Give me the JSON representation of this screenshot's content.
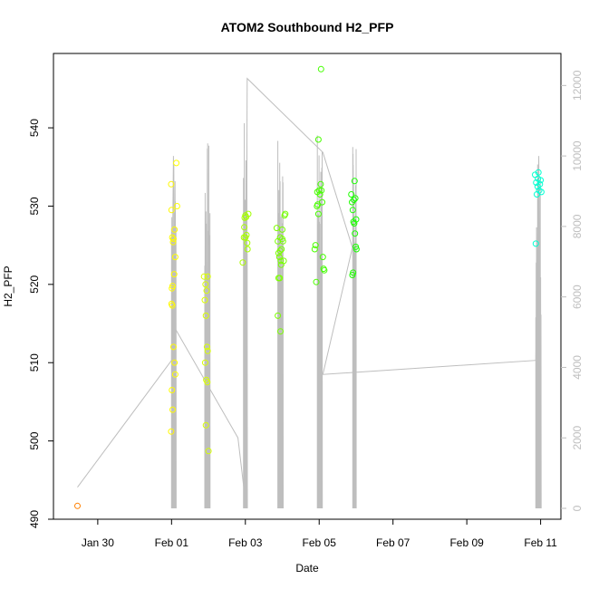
{
  "chart_data": {
    "type": "scatter",
    "title": "ATOM2 Southbound H2_PFP",
    "xlabel": "Date",
    "ylabel": "H2_PFP",
    "x_ticks": [
      {
        "day": 0.5,
        "label": "Jan 30"
      },
      {
        "day": 2.5,
        "label": "Feb 01"
      },
      {
        "day": 4.5,
        "label": "Feb 03"
      },
      {
        "day": 6.5,
        "label": "Feb 05"
      },
      {
        "day": 8.5,
        "label": "Feb 07"
      },
      {
        "day": 10.5,
        "label": "Feb 09"
      },
      {
        "day": 12.5,
        "label": "Feb 11"
      }
    ],
    "x_range_days": [
      -0.7,
      13.05
    ],
    "y_left": {
      "range": [
        490,
        549.5
      ],
      "ticks": [
        490,
        500,
        510,
        520,
        530,
        540
      ]
    },
    "y_right": {
      "range": [
        0,
        12600
      ],
      "ticks": [
        0,
        2000,
        4000,
        6000,
        8000,
        10000,
        12000
      ],
      "color": "#bebebe"
    },
    "color_scale": {
      "day_min": -0.05,
      "day_max": 12.5
    },
    "series": [
      {
        "role": "H2_PFP",
        "points": [
          [
            -0.05,
            491.7
          ],
          [
            2.49,
            532.8
          ],
          [
            2.5,
            529.5
          ],
          [
            2.52,
            526.0
          ],
          [
            2.54,
            525.4
          ],
          [
            2.55,
            525.8
          ],
          [
            2.57,
            521.3
          ],
          [
            2.53,
            519.8
          ],
          [
            2.51,
            519.5
          ],
          [
            2.5,
            517.5
          ],
          [
            2.52,
            517.3
          ],
          [
            2.55,
            512.0
          ],
          [
            2.58,
            510.0
          ],
          [
            2.6,
            508.5
          ],
          [
            2.51,
            506.5
          ],
          [
            2.53,
            504.0
          ],
          [
            2.49,
            501.2
          ],
          [
            2.63,
            535.5
          ],
          [
            2.65,
            530.0
          ],
          [
            2.58,
            527.0
          ],
          [
            2.6,
            523.5
          ],
          [
            3.38,
            521.0
          ],
          [
            3.42,
            520.0
          ],
          [
            3.45,
            519.2
          ],
          [
            3.4,
            518.0
          ],
          [
            3.43,
            516.0
          ],
          [
            3.46,
            512.0
          ],
          [
            3.48,
            511.5
          ],
          [
            3.41,
            510.0
          ],
          [
            3.44,
            507.8
          ],
          [
            3.47,
            507.5
          ],
          [
            3.43,
            502.0
          ],
          [
            3.5,
            498.7
          ],
          [
            3.48,
            521.0
          ],
          [
            4.43,
            522.8
          ],
          [
            4.46,
            526.0
          ],
          [
            4.48,
            528.5
          ],
          [
            4.5,
            528.8
          ],
          [
            4.52,
            528.6
          ],
          [
            4.47,
            527.3
          ],
          [
            4.53,
            526.3
          ],
          [
            4.55,
            525.3
          ],
          [
            4.56,
            524.5
          ],
          [
            4.5,
            526.0
          ],
          [
            4.58,
            529.0
          ],
          [
            5.35,
            527.2
          ],
          [
            5.38,
            525.5
          ],
          [
            5.4,
            524.0
          ],
          [
            5.42,
            523.5
          ],
          [
            5.44,
            526.0
          ],
          [
            5.46,
            523.0
          ],
          [
            5.48,
            524.5
          ],
          [
            5.5,
            527.0
          ],
          [
            5.52,
            525.5
          ],
          [
            5.54,
            523.0
          ],
          [
            5.47,
            522.5
          ],
          [
            5.4,
            520.8
          ],
          [
            5.43,
            520.8
          ],
          [
            5.38,
            516.0
          ],
          [
            5.45,
            514.0
          ],
          [
            5.56,
            528.8
          ],
          [
            5.58,
            529.0
          ],
          [
            5.5,
            525.8
          ],
          [
            5.44,
            524.3
          ],
          [
            6.38,
            524.5
          ],
          [
            6.4,
            525.0
          ],
          [
            6.42,
            520.3
          ],
          [
            6.44,
            530.0
          ],
          [
            6.46,
            530.2
          ],
          [
            6.48,
            529.0
          ],
          [
            6.5,
            532.0
          ],
          [
            6.52,
            531.5
          ],
          [
            6.54,
            532.8
          ],
          [
            6.56,
            532.0
          ],
          [
            6.58,
            530.5
          ],
          [
            6.6,
            523.5
          ],
          [
            6.62,
            522.0
          ],
          [
            6.64,
            521.8
          ],
          [
            6.48,
            538.5
          ],
          [
            6.55,
            547.5
          ],
          [
            6.45,
            531.8
          ],
          [
            7.37,
            531.5
          ],
          [
            7.39,
            530.5
          ],
          [
            7.41,
            529.5
          ],
          [
            7.43,
            528.0
          ],
          [
            7.45,
            527.8
          ],
          [
            7.47,
            526.5
          ],
          [
            7.49,
            524.8
          ],
          [
            7.51,
            524.5
          ],
          [
            7.44,
            530.8
          ],
          [
            7.46,
            533.2
          ],
          [
            7.5,
            528.3
          ],
          [
            7.48,
            531.0
          ],
          [
            7.4,
            521.2
          ],
          [
            7.42,
            521.5
          ],
          [
            12.35,
            534.0
          ],
          [
            12.38,
            533.0
          ],
          [
            12.4,
            531.5
          ],
          [
            12.42,
            532.5
          ],
          [
            12.44,
            534.3
          ],
          [
            12.46,
            532.0
          ],
          [
            12.48,
            532.8
          ],
          [
            12.5,
            533.3
          ],
          [
            12.52,
            531.8
          ],
          [
            12.37,
            525.2
          ],
          [
            12.43,
            533.5
          ]
        ]
      },
      {
        "role": "right-axis trace",
        "spikes": [
          {
            "start": 2.5,
            "end": 2.62,
            "max": 10300
          },
          {
            "start": 3.4,
            "end": 3.54,
            "max": 10500
          },
          {
            "start": 4.45,
            "end": 4.55,
            "max": 11000
          },
          {
            "start": 5.38,
            "end": 5.52,
            "max": 11000
          },
          {
            "start": 6.45,
            "end": 6.58,
            "max": 10800
          },
          {
            "start": 7.41,
            "end": 7.5,
            "max": 10400
          },
          {
            "start": 12.37,
            "end": 12.51,
            "max": 9800
          }
        ],
        "connectors": [
          [
            -0.05,
            600
          ],
          [
            2.5,
            4200
          ],
          [
            2.55,
            10000
          ],
          [
            2.6,
            5100
          ],
          [
            4.3,
            2000
          ],
          [
            4.5,
            200
          ],
          [
            4.55,
            12200
          ],
          [
            6.6,
            10100
          ],
          [
            7.4,
            7400
          ],
          [
            6.6,
            3800
          ],
          [
            12.37,
            4200
          ],
          [
            12.45,
            10000
          ],
          [
            12.48,
            3300
          ]
        ]
      }
    ]
  }
}
